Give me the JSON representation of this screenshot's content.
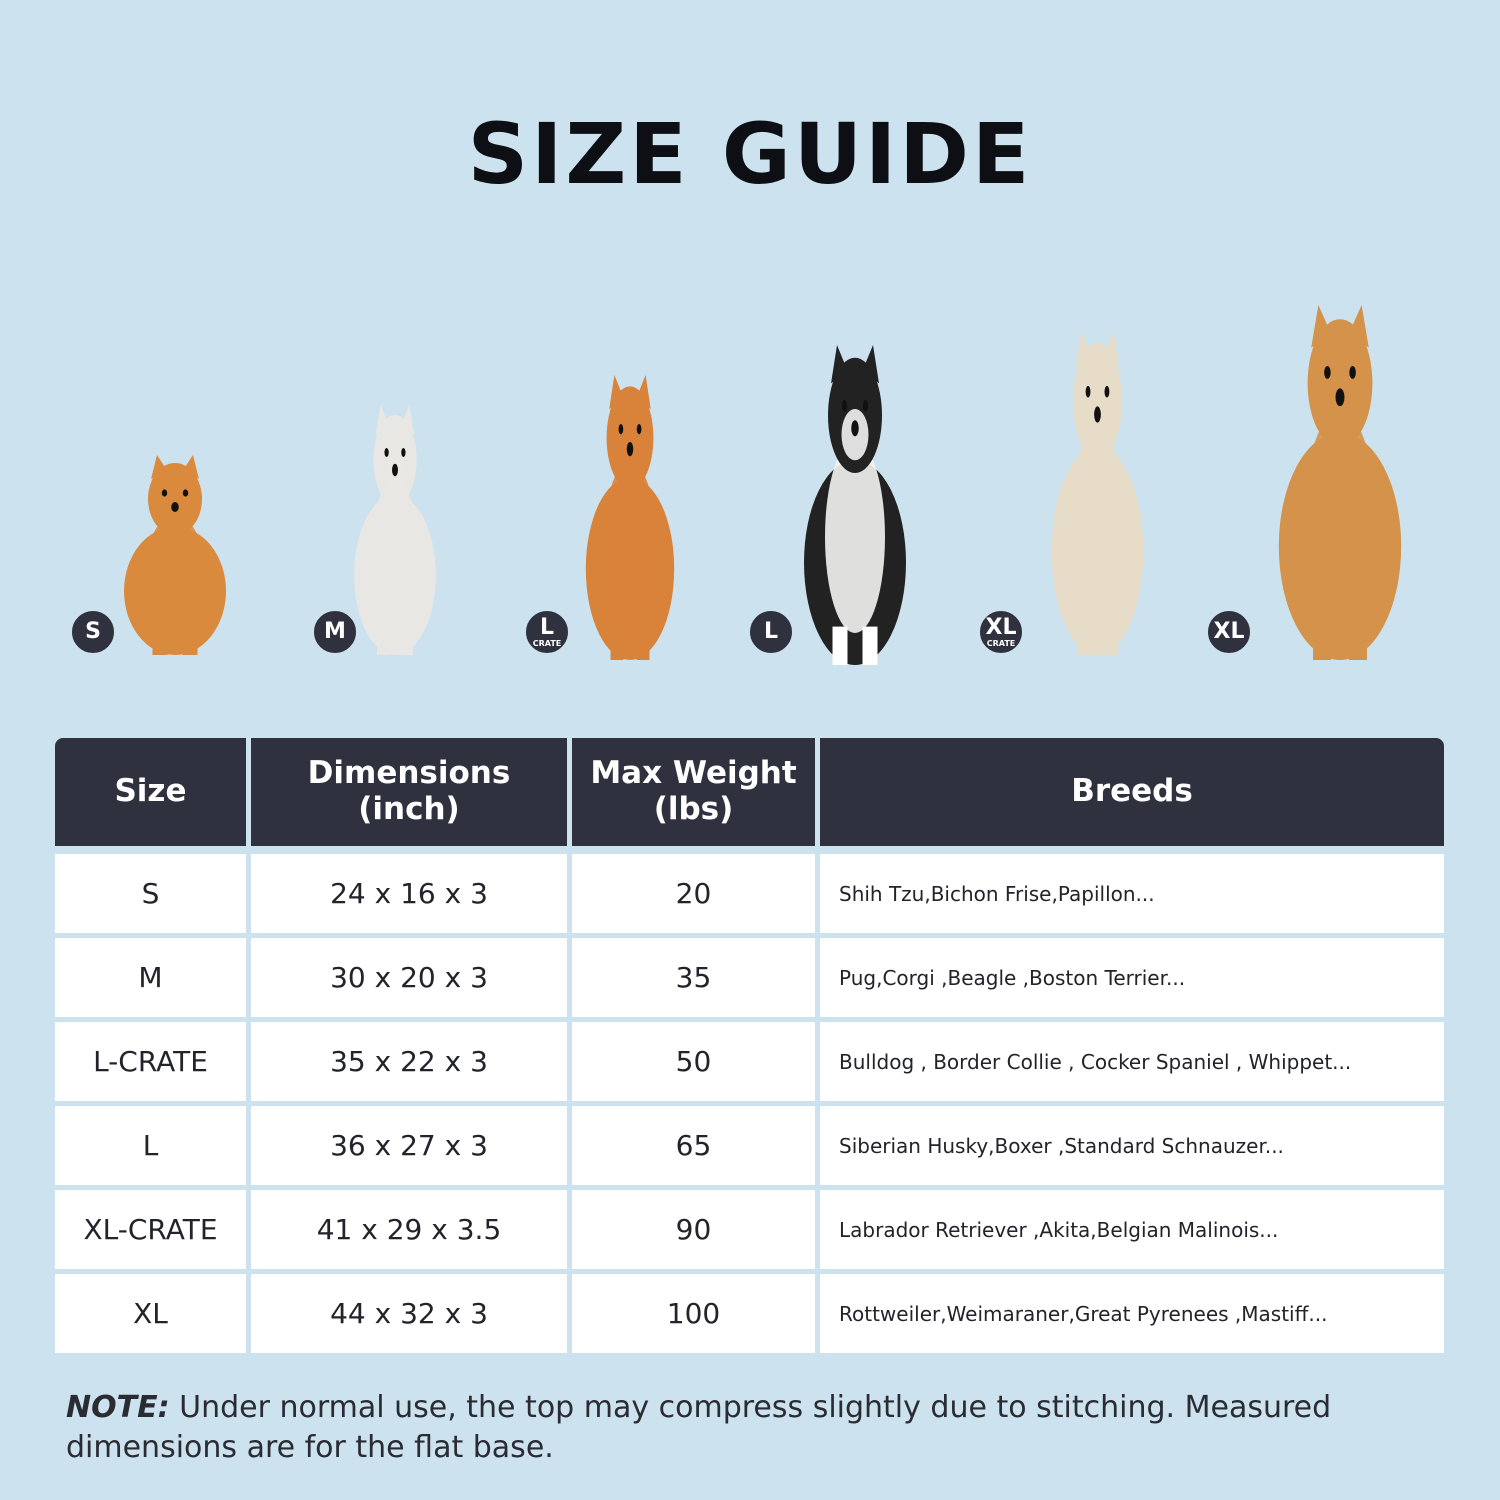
{
  "title": "SIZE GUIDE",
  "colors": {
    "background": "#cce3ef",
    "header": "#30313f",
    "row": "#ffffff"
  },
  "dogs": [
    {
      "badge": "S",
      "badge_sub": "",
      "color": "#d98a3d"
    },
    {
      "badge": "M",
      "badge_sub": "",
      "color": "#e9e7e3"
    },
    {
      "badge": "L",
      "badge_sub": "CRATE",
      "color": "#d9823a"
    },
    {
      "badge": "L",
      "badge_sub": "",
      "color": "#222222"
    },
    {
      "badge": "XL",
      "badge_sub": "CRATE",
      "color": "#e6dcc7"
    },
    {
      "badge": "XL",
      "badge_sub": "",
      "color": "#d4924a"
    }
  ],
  "table": {
    "headers": [
      "Size",
      "Dimensions\n(inch)",
      "Max Weight\n(lbs)",
      "Breeds"
    ],
    "rows": [
      [
        "S",
        "24 x 16 x 3",
        "20",
        "Shih Tzu,Bichon Frise,Papillon..."
      ],
      [
        "M",
        "30 x 20 x 3",
        "35",
        "Pug,Corgi ,Beagle ,Boston Terrier..."
      ],
      [
        "L-CRATE",
        "35 x 22 x 3",
        "50",
        "Bulldog , Border Collie , Cocker Spaniel , Whippet..."
      ],
      [
        "L",
        "36 x 27 x 3",
        "65",
        "Siberian Husky,Boxer ,Standard Schnauzer..."
      ],
      [
        "XL-CRATE",
        "41 x 29 x 3.5",
        "90",
        "Labrador Retriever ,Akita,Belgian Malinois..."
      ],
      [
        "XL",
        "44 x 32 x 3",
        "100",
        "Rottweiler,Weimaraner,Great Pyrenees ,Mastiff..."
      ]
    ]
  },
  "note": {
    "label": "NOTE:",
    "text": " Under normal use, the top may compress slightly due to stitching. Measured dimensions are for the flat base."
  }
}
